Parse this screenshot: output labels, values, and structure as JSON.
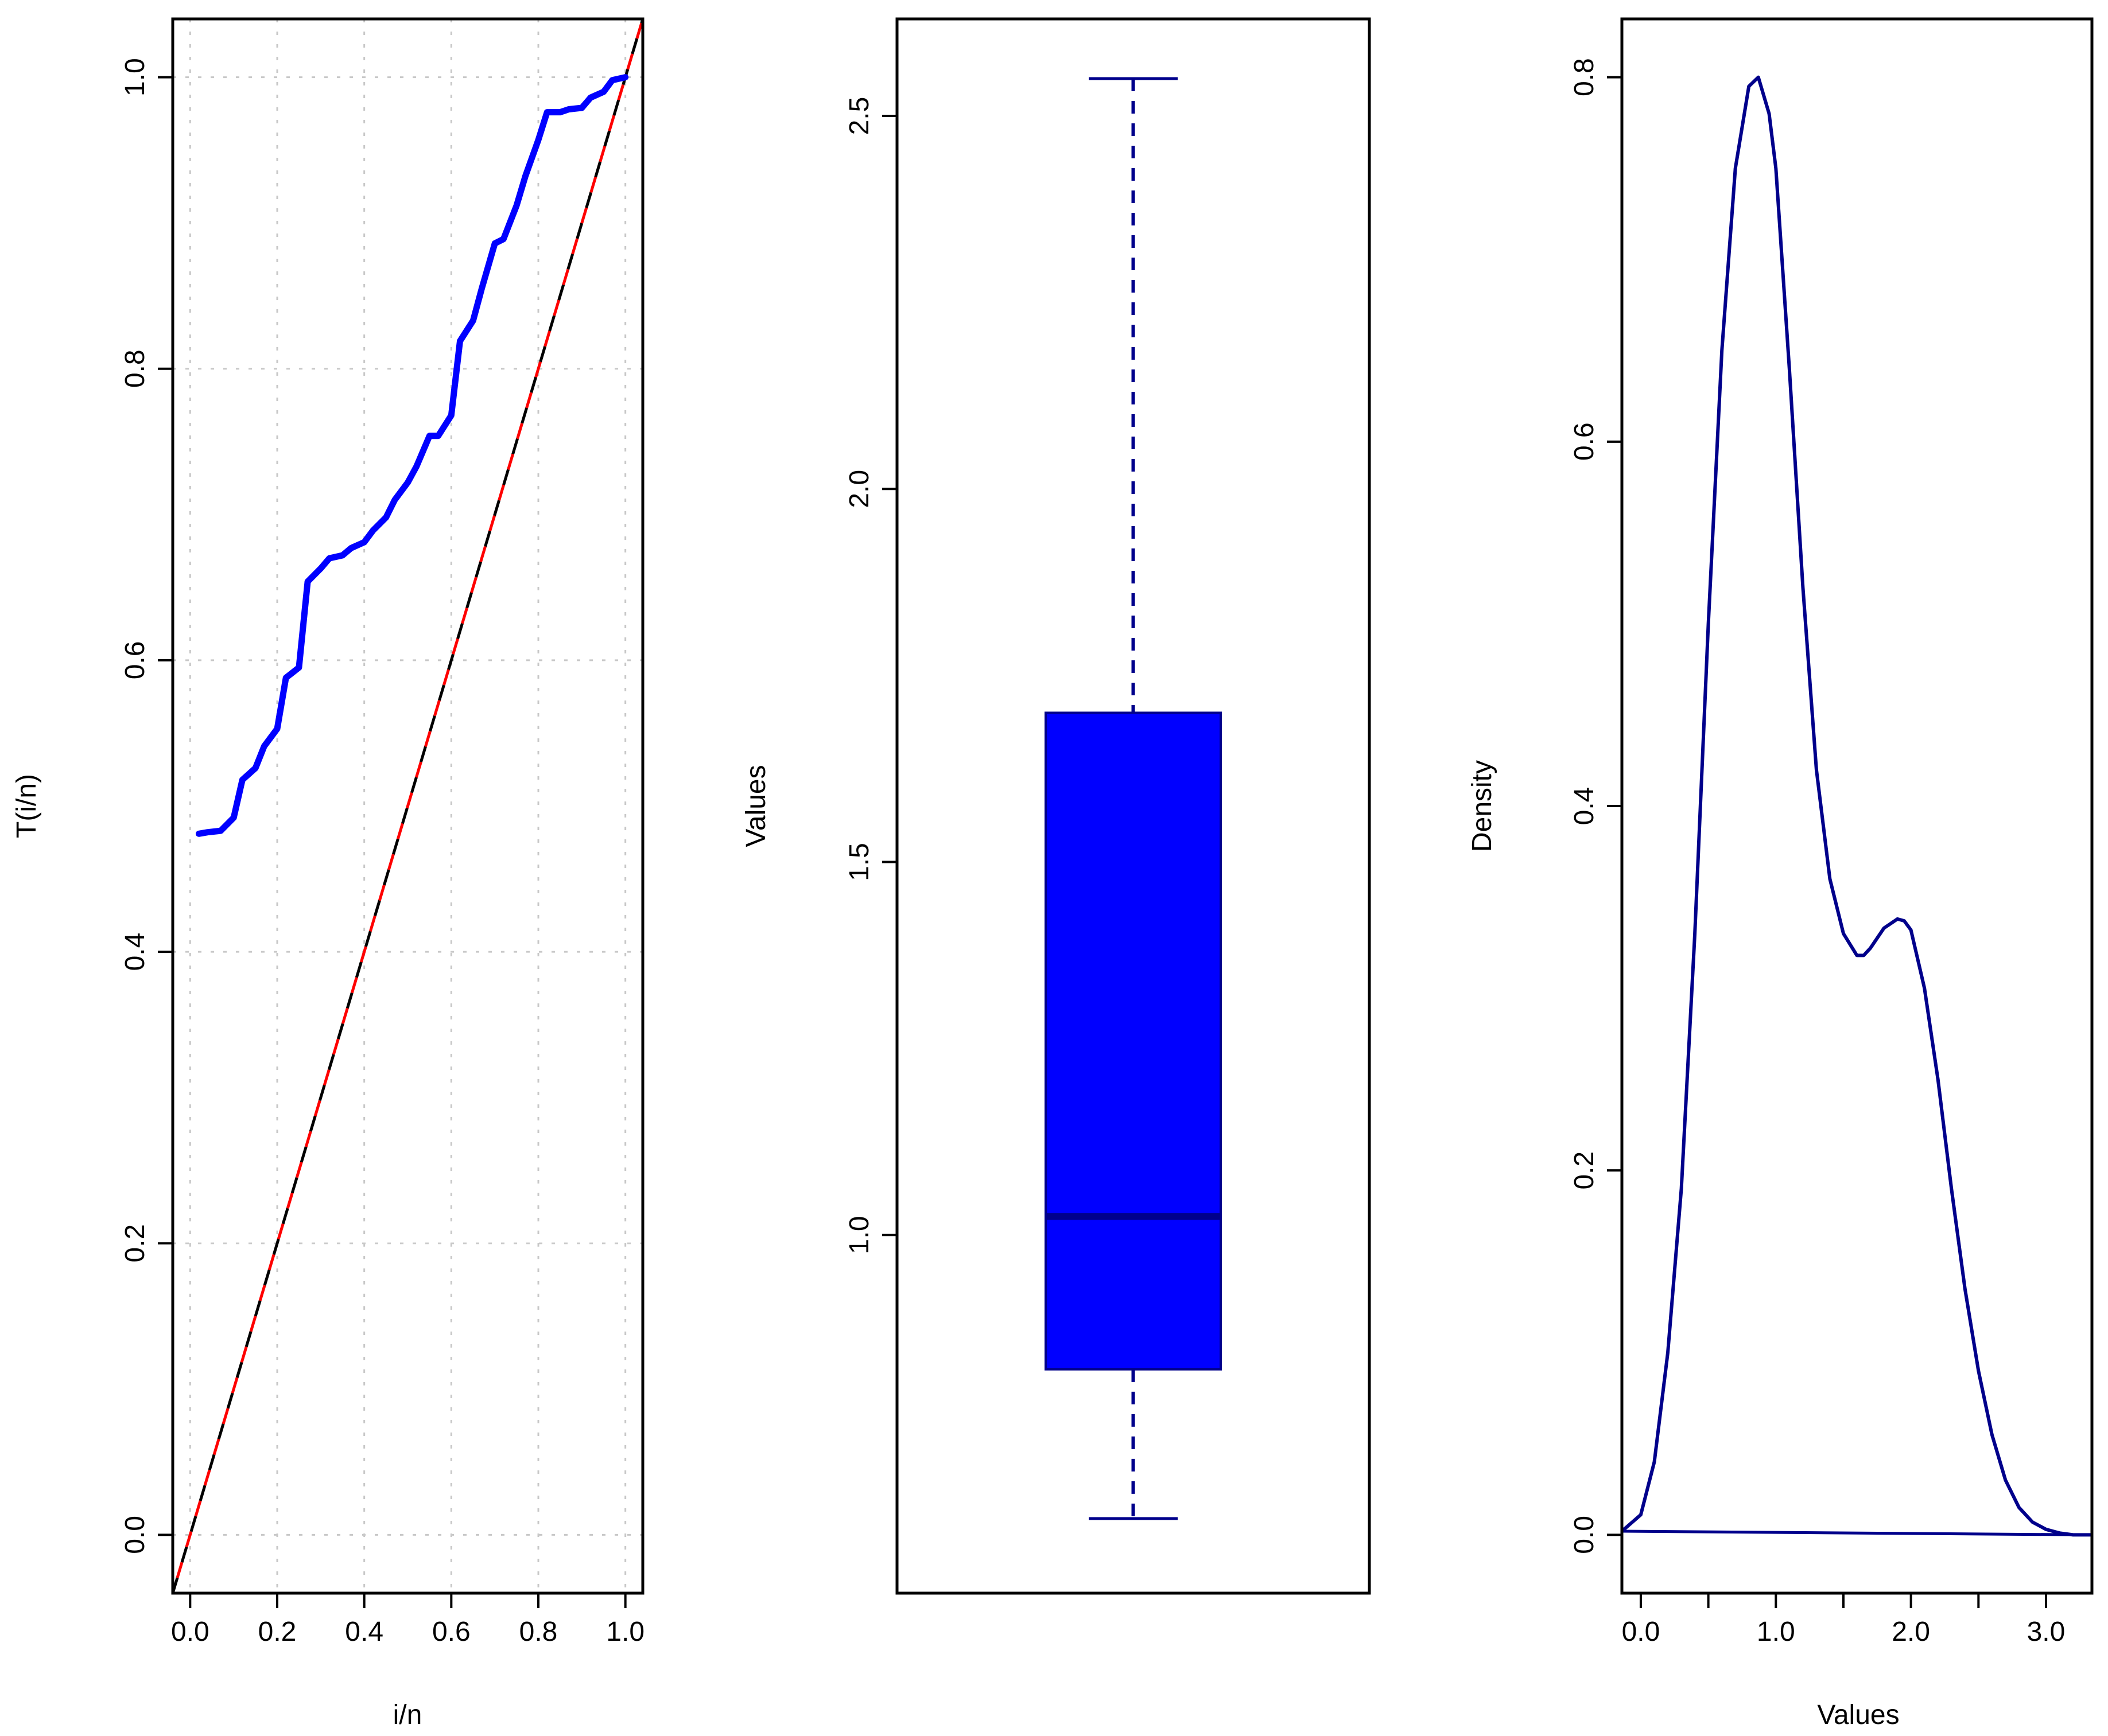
{
  "colors": {
    "ttt_curve": "#0000ff",
    "diagonal_dash_1": "#ff0000",
    "diagonal_dash_2": "#000000",
    "grid": "#c8c8c8",
    "box_fill": "#0000ff",
    "box_median": "#00008b",
    "whisker": "#00008b",
    "density_line": "#00008b"
  },
  "chart_data": [
    {
      "type": "line",
      "title": "",
      "xlabel": "i/n",
      "ylabel": "T(i/n)",
      "xlim": [
        -0.04,
        1.04
      ],
      "ylim": [
        -0.04,
        1.04
      ],
      "xticks": [
        "0.0",
        "0.2",
        "0.4",
        "0.6",
        "0.8",
        "1.0"
      ],
      "yticks": [
        "0.0",
        "0.2",
        "0.4",
        "0.6",
        "0.8",
        "1.0"
      ],
      "grid": true,
      "series": [
        {
          "x": [
            0.02,
            0.04,
            0.07,
            0.1,
            0.12,
            0.15,
            0.17,
            0.2,
            0.22,
            0.25,
            0.27,
            0.3,
            0.32,
            0.35,
            0.37,
            0.4,
            0.42,
            0.45,
            0.47,
            0.5,
            0.52,
            0.55,
            0.57,
            0.6,
            0.62,
            0.65,
            0.67,
            0.7,
            0.72,
            0.75,
            0.77,
            0.8,
            0.82,
            0.85,
            0.87,
            0.9,
            0.92,
            0.95,
            0.97,
            1.0
          ],
          "y": [
            0.481,
            0.482,
            0.483,
            0.492,
            0.518,
            0.526,
            0.541,
            0.553,
            0.588,
            0.595,
            0.654,
            0.663,
            0.67,
            0.672,
            0.677,
            0.681,
            0.689,
            0.698,
            0.71,
            0.722,
            0.733,
            0.754,
            0.754,
            0.768,
            0.819,
            0.833,
            0.855,
            0.886,
            0.889,
            0.912,
            0.932,
            0.957,
            0.976,
            0.976,
            0.978,
            0.979,
            0.986,
            0.99,
            0.998,
            1.0
          ]
        },
        {
          "x": [
            -0.04,
            1.04
          ],
          "y": [
            -0.04,
            1.04
          ]
        }
      ]
    },
    {
      "type": "box",
      "title": "",
      "xlabel": "",
      "ylabel": "Values",
      "ylim": [
        0.52,
        2.63
      ],
      "yticks": [
        "1.0",
        "1.5",
        "2.0",
        "2.5"
      ],
      "grid": false,
      "box": {
        "min": 0.62,
        "q1": 0.82,
        "median": 1.025,
        "q3": 1.7,
        "max": 2.55
      }
    },
    {
      "type": "line",
      "title": "",
      "xlabel": "Values",
      "ylabel": "Density",
      "xlim": [
        -0.14,
        3.34
      ],
      "ylim": [
        -0.032,
        0.832
      ],
      "xticks": [
        "0.0",
        "1.0",
        "2.0",
        "3.0"
      ],
      "yticks": [
        "0.0",
        "0.2",
        "0.4",
        "0.6",
        "0.8"
      ],
      "grid": false,
      "series": [
        {
          "x": [
            -0.14,
            0.0,
            0.1,
            0.2,
            0.3,
            0.4,
            0.5,
            0.6,
            0.7,
            0.8,
            0.87,
            0.95,
            1.0,
            1.1,
            1.2,
            1.3,
            1.4,
            1.5,
            1.6,
            1.65,
            1.7,
            1.8,
            1.9,
            1.95,
            2.0,
            2.1,
            2.2,
            2.3,
            2.4,
            2.5,
            2.6,
            2.7,
            2.8,
            2.9,
            3.0,
            3.1,
            3.2,
            3.34
          ],
          "y": [
            0.002,
            0.011,
            0.04,
            0.1,
            0.19,
            0.33,
            0.5,
            0.65,
            0.75,
            0.795,
            0.8,
            0.78,
            0.75,
            0.64,
            0.52,
            0.42,
            0.36,
            0.33,
            0.318,
            0.318,
            0.322,
            0.333,
            0.338,
            0.337,
            0.332,
            0.3,
            0.25,
            0.19,
            0.135,
            0.09,
            0.055,
            0.03,
            0.015,
            0.007,
            0.003,
            0.001,
            0.0,
            0.0
          ]
        }
      ]
    }
  ]
}
